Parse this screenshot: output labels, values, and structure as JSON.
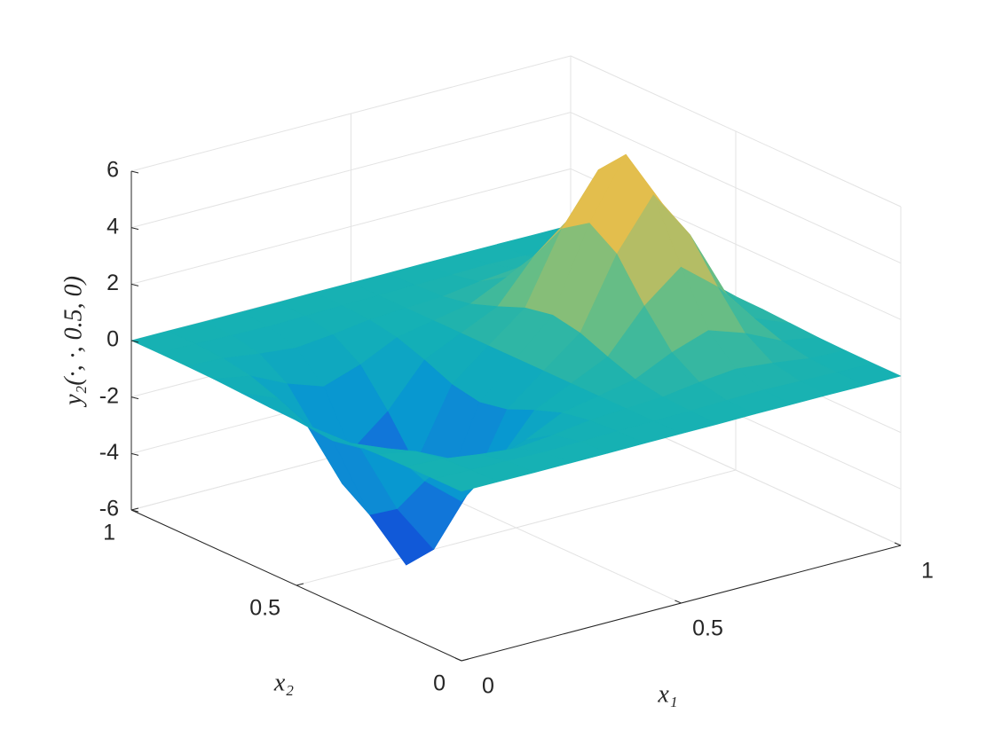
{
  "chart_data": {
    "type": "surface",
    "x": [
      0,
      0.0833,
      0.1667,
      0.25,
      0.3333,
      0.4167,
      0.5,
      0.5833,
      0.6667,
      0.75,
      0.8333,
      0.9167,
      1
    ],
    "y": [
      0,
      0.0833,
      0.1667,
      0.25,
      0.3333,
      0.4167,
      0.5,
      0.5833,
      0.6667,
      0.75,
      0.8333,
      0.9167,
      1
    ],
    "z": [
      [
        0,
        0,
        -0.01,
        -0.01,
        -0.01,
        0,
        0,
        0,
        0.01,
        0.01,
        0.01,
        0,
        0
      ],
      [
        0,
        -0.02,
        -0.05,
        -0.08,
        -0.05,
        -0.02,
        0,
        0.02,
        0.05,
        0.08,
        0.05,
        0.02,
        0
      ],
      [
        -0.01,
        -0.08,
        -0.26,
        -0.39,
        -0.26,
        -0.08,
        0,
        0.07,
        0.25,
        0.38,
        0.25,
        0.07,
        0.01
      ],
      [
        -0.03,
        -0.26,
        -0.88,
        -1.32,
        -0.88,
        -0.26,
        0,
        0.25,
        0.86,
        1.3,
        0.86,
        0.25,
        0.03
      ],
      [
        -0.08,
        -0.61,
        -2.09,
        -3.15,
        -2.09,
        -0.61,
        0,
        0.6,
        2.06,
        3.1,
        2.06,
        0.6,
        0.08
      ],
      [
        -0.13,
        -1.03,
        -3.52,
        -5.3,
        -3.52,
        -1.03,
        0,
        1,
        3.46,
        5.21,
        3.46,
        1.01,
        0.13
      ],
      [
        -0.16,
        -1.22,
        -4.18,
        -6.3,
        -4.18,
        -1.22,
        0,
        1.19,
        4.11,
        6.2,
        4.11,
        1.2,
        0.15
      ],
      [
        -0.13,
        -1.03,
        -3.52,
        -5.3,
        -3.52,
        -1.03,
        0,
        1,
        3.46,
        5.21,
        3.46,
        1.01,
        0.13
      ],
      [
        -0.08,
        -0.61,
        -2.09,
        -3.15,
        -2.09,
        -0.61,
        0,
        0.6,
        2.06,
        3.1,
        2.06,
        0.6,
        0.08
      ],
      [
        -0.03,
        -0.26,
        -0.88,
        -1.32,
        -0.88,
        -0.26,
        0,
        0.25,
        0.86,
        1.3,
        0.86,
        0.25,
        0.03
      ],
      [
        -0.01,
        -0.08,
        -0.26,
        -0.39,
        -0.26,
        -0.08,
        0,
        0.07,
        0.25,
        0.38,
        0.25,
        0.07,
        0.01
      ],
      [
        0,
        -0.02,
        -0.05,
        -0.08,
        -0.05,
        -0.02,
        0,
        0.02,
        0.05,
        0.08,
        0.05,
        0.02,
        0
      ],
      [
        0,
        0,
        -0.01,
        -0.01,
        -0.01,
        0,
        0,
        0,
        0.01,
        0.01,
        0.01,
        0,
        0
      ]
    ],
    "xlabel": "x₁",
    "ylabel": "x₂",
    "zlabel": "y₂(·, ·, 0.5, 0)",
    "xlim": [
      0,
      1
    ],
    "ylim": [
      0,
      1
    ],
    "zlim": [
      -6,
      6
    ],
    "xticks": [
      0,
      0.5,
      1
    ],
    "yticks": [
      0,
      0.5,
      1
    ],
    "zticks": [
      -6,
      -4,
      -2,
      0,
      2,
      4,
      6
    ],
    "colormap": "parula",
    "grid": true
  }
}
